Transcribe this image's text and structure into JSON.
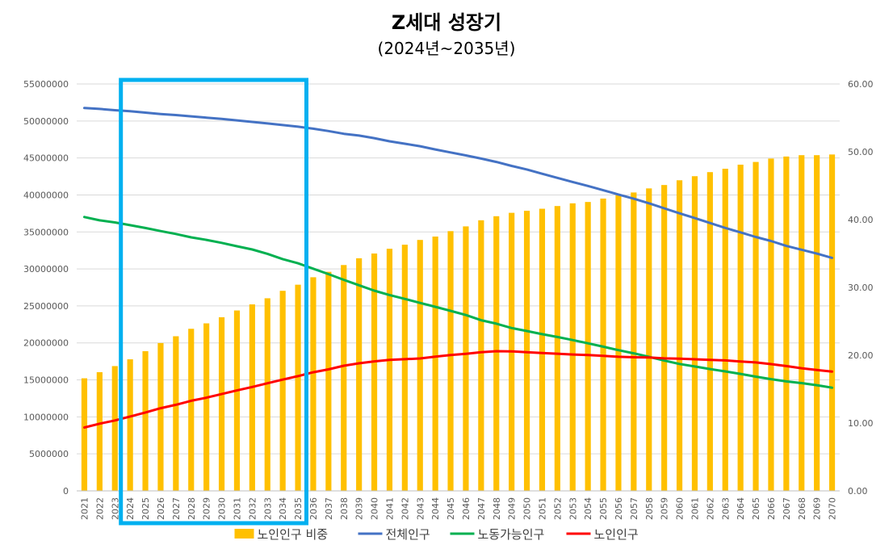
{
  "chart_data": {
    "type": "bar+line",
    "title": "Z세대 성장기",
    "subtitle": "(2024년~2035년)",
    "categories": [
      "2021",
      "2022",
      "2023",
      "2024",
      "2025",
      "2026",
      "2027",
      "2028",
      "2029",
      "2030",
      "2031",
      "2032",
      "2033",
      "2034",
      "2035",
      "2036",
      "2037",
      "2038",
      "2039",
      "2040",
      "2041",
      "2042",
      "2043",
      "2044",
      "2045",
      "2046",
      "2047",
      "2048",
      "2049",
      "2050",
      "2051",
      "2052",
      "2053",
      "2054",
      "2055",
      "2056",
      "2057",
      "2058",
      "2059",
      "2060",
      "2061",
      "2062",
      "2063",
      "2064",
      "2065",
      "2066",
      "2067",
      "2068",
      "2069",
      "2070"
    ],
    "left_axis": {
      "min": 0,
      "max": 55000000,
      "step": 5000000,
      "ticks": [
        "0",
        "5000000",
        "10000000",
        "15000000",
        "20000000",
        "25000000",
        "30000000",
        "35000000",
        "40000000",
        "45000000",
        "50000000",
        "55000000"
      ]
    },
    "right_axis": {
      "min": 0,
      "max": 60,
      "step": 10,
      "ticks": [
        "0.00",
        "10.00",
        "20.00",
        "30.00",
        "40.00",
        "50.00",
        "60.00"
      ]
    },
    "grid": true,
    "legend_position": "bottom",
    "series": [
      {
        "name": "노인인구 비중",
        "type": "bar",
        "axis": "right",
        "color": "#FFC000",
        "values": [
          16.6,
          17.5,
          18.4,
          19.4,
          20.6,
          21.8,
          22.8,
          23.9,
          24.7,
          25.6,
          26.6,
          27.5,
          28.4,
          29.5,
          30.4,
          31.5,
          32.3,
          33.3,
          34.3,
          35.0,
          35.7,
          36.3,
          37.0,
          37.5,
          38.3,
          39.0,
          39.9,
          40.5,
          41.0,
          41.3,
          41.6,
          42.0,
          42.4,
          42.6,
          43.1,
          43.6,
          44.0,
          44.6,
          45.1,
          45.8,
          46.4,
          47.0,
          47.5,
          48.1,
          48.5,
          49.0,
          49.3,
          49.5,
          49.5,
          49.6
        ]
      },
      {
        "name": "전체인구",
        "type": "line",
        "axis": "left",
        "color": "#4472C4",
        "values": [
          51750000,
          51630000,
          51450000,
          51320000,
          51130000,
          50940000,
          50800000,
          50620000,
          50450000,
          50280000,
          50080000,
          49870000,
          49660000,
          49450000,
          49230000,
          48950000,
          48640000,
          48270000,
          48030000,
          47680000,
          47250000,
          46930000,
          46590000,
          46150000,
          45750000,
          45340000,
          44920000,
          44460000,
          43920000,
          43440000,
          42870000,
          42310000,
          41750000,
          41220000,
          40640000,
          40060000,
          39490000,
          38870000,
          38190000,
          37520000,
          36870000,
          36210000,
          35540000,
          34940000,
          34320000,
          33770000,
          33110000,
          32600000,
          32070000,
          31490000
        ]
      },
      {
        "name": "노동가능인구",
        "type": "line",
        "axis": "left",
        "color": "#00B050",
        "values": [
          37020000,
          36570000,
          36280000,
          35910000,
          35530000,
          35120000,
          34720000,
          34270000,
          33930000,
          33520000,
          33070000,
          32630000,
          32040000,
          31330000,
          30760000,
          30030000,
          29300000,
          28530000,
          27800000,
          27060000,
          26470000,
          25950000,
          25400000,
          24880000,
          24330000,
          23770000,
          23070000,
          22600000,
          22010000,
          21610000,
          21180000,
          20800000,
          20380000,
          19950000,
          19490000,
          19020000,
          18590000,
          18110000,
          17610000,
          17150000,
          16820000,
          16470000,
          16150000,
          15810000,
          15440000,
          15100000,
          14800000,
          14570000,
          14280000,
          13950000
        ]
      },
      {
        "name": "노인인구",
        "type": "line",
        "axis": "left",
        "color": "#FF0000",
        "values": [
          8570000,
          9080000,
          9520000,
          10050000,
          10600000,
          11170000,
          11630000,
          12180000,
          12590000,
          13080000,
          13580000,
          14040000,
          14550000,
          15040000,
          15510000,
          16030000,
          16420000,
          16910000,
          17240000,
          17500000,
          17710000,
          17800000,
          17900000,
          18140000,
          18370000,
          18530000,
          18740000,
          18880000,
          18860000,
          18740000,
          18640000,
          18540000,
          18430000,
          18370000,
          18250000,
          18130000,
          18060000,
          18030000,
          17910000,
          17870000,
          17790000,
          17700000,
          17640000,
          17490000,
          17360000,
          17130000,
          16870000,
          16580000,
          16340000,
          16130000
        ]
      }
    ],
    "highlight": {
      "from": "2024",
      "to": "2035",
      "color": "#00B0F0"
    }
  }
}
